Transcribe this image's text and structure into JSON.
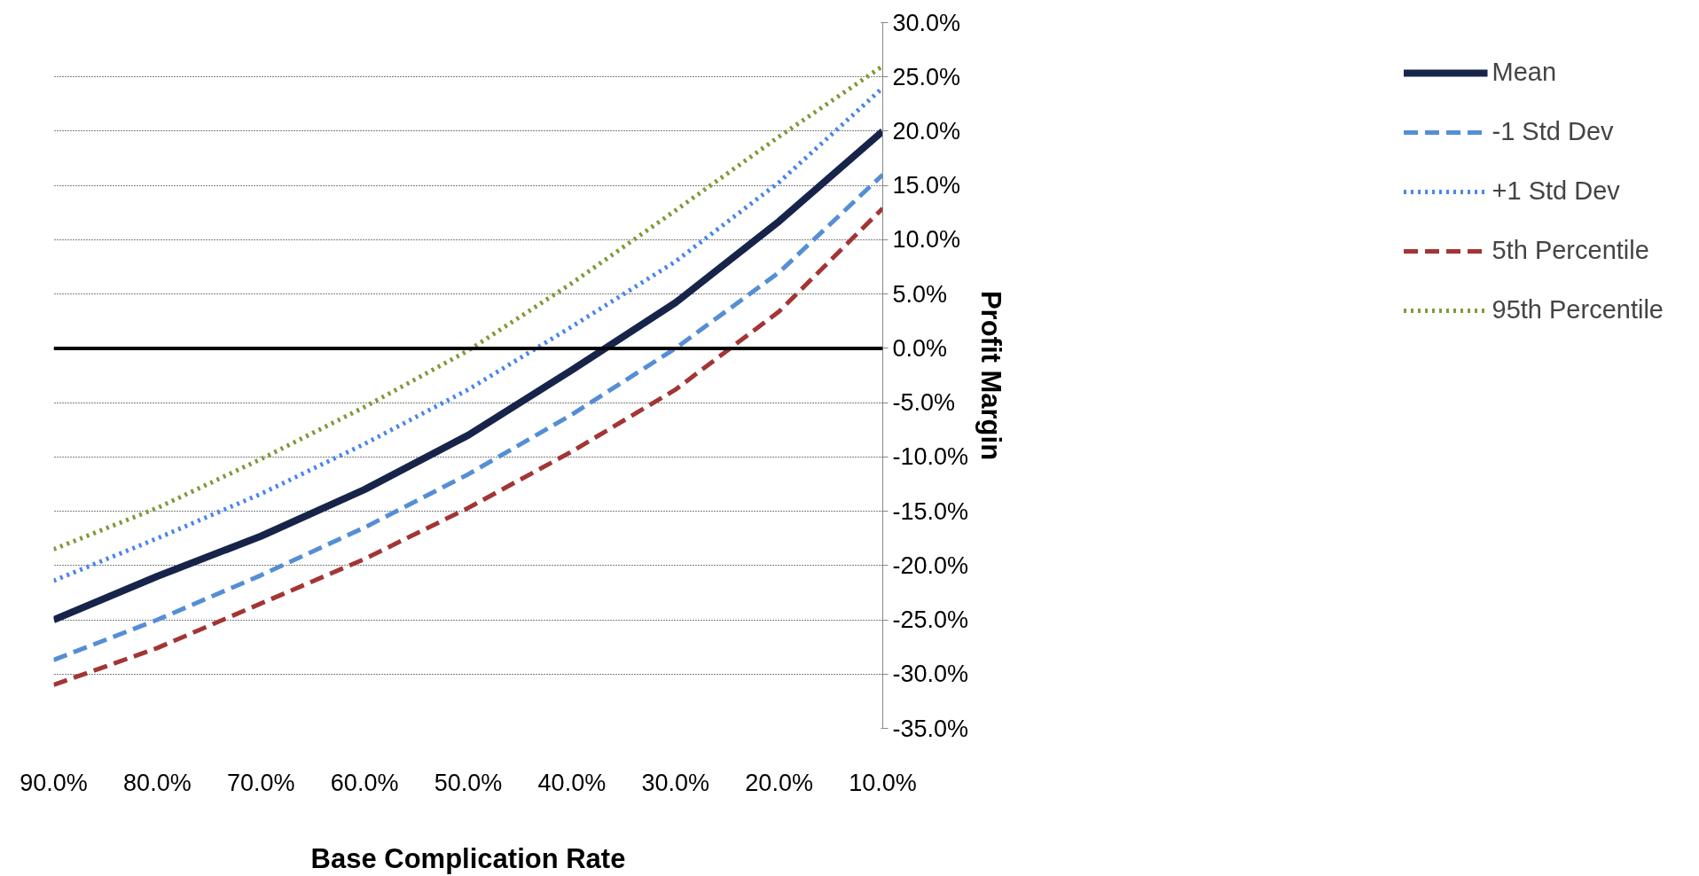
{
  "chart_data": {
    "type": "line",
    "xlabel": "Base Complication Rate",
    "ylabel": "Profit Margin",
    "x": [
      90,
      80,
      70,
      60,
      50,
      40,
      30,
      20,
      10
    ],
    "series": [
      {
        "name": "Mean",
        "color": "#17244a",
        "line_style": "solid",
        "values": [
          -25,
          -21,
          -17.3,
          -13,
          -8,
          -2,
          4.2,
          11.7,
          20
        ]
      },
      {
        "name": "-1 Std Dev",
        "color": "#558ed5",
        "line_style": "dashed",
        "values": [
          -28.7,
          -25,
          -20.9,
          -16.5,
          -11.6,
          -6.1,
          0,
          7,
          16
        ]
      },
      {
        "name": "+1 Std Dev",
        "color": "#4a86e8",
        "line_style": "dotted",
        "values": [
          -21.4,
          -17.5,
          -13.4,
          -8.8,
          -3.8,
          2,
          8,
          15.3,
          24
        ]
      },
      {
        "name": "5th Percentile",
        "color": "#a33535",
        "line_style": "dashed",
        "values": [
          -31,
          -27.6,
          -23.5,
          -19.4,
          -14.7,
          -9.5,
          -3.8,
          3.4,
          12.9
        ]
      },
      {
        "name": "95th Percentile",
        "color": "#7f9a3a",
        "line_style": "dotted",
        "values": [
          -18.5,
          -14.7,
          -10.2,
          -5.4,
          -0.2,
          6,
          12.7,
          19.5,
          26
        ]
      }
    ],
    "xlim": [
      90,
      10
    ],
    "xticks": [
      {
        "value": 90,
        "label": "90.0%"
      },
      {
        "value": 80,
        "label": "80.0%"
      },
      {
        "value": 70,
        "label": "70.0%"
      },
      {
        "value": 60,
        "label": "60.0%"
      },
      {
        "value": 50,
        "label": "50.0%"
      },
      {
        "value": 40,
        "label": "40.0%"
      },
      {
        "value": 30,
        "label": "30.0%"
      },
      {
        "value": 20,
        "label": "20.0%"
      },
      {
        "value": 10,
        "label": "10.0%"
      }
    ],
    "ylim": [
      -35,
      30
    ],
    "yticks": [
      {
        "value": 30,
        "label": "30.0%"
      },
      {
        "value": 25,
        "label": "25.0%"
      },
      {
        "value": 20,
        "label": "20.0%"
      },
      {
        "value": 15,
        "label": "15.0%"
      },
      {
        "value": 10,
        "label": "10.0%"
      },
      {
        "value": 5,
        "label": "5.0%"
      },
      {
        "value": 0,
        "label": "0.0%"
      },
      {
        "value": -5,
        "label": "-5.0%"
      },
      {
        "value": -10,
        "label": "-10.0%"
      },
      {
        "value": -15,
        "label": "-15.0%"
      },
      {
        "value": -20,
        "label": "-20.0%"
      },
      {
        "value": -25,
        "label": "-25.0%"
      },
      {
        "value": -30,
        "label": "-30.0%"
      },
      {
        "value": -35,
        "label": "-35.0%"
      }
    ],
    "ref_lines": [
      {
        "axis": "y",
        "value": 0,
        "color": "#000000"
      }
    ],
    "grid": "y",
    "legend": "right"
  }
}
